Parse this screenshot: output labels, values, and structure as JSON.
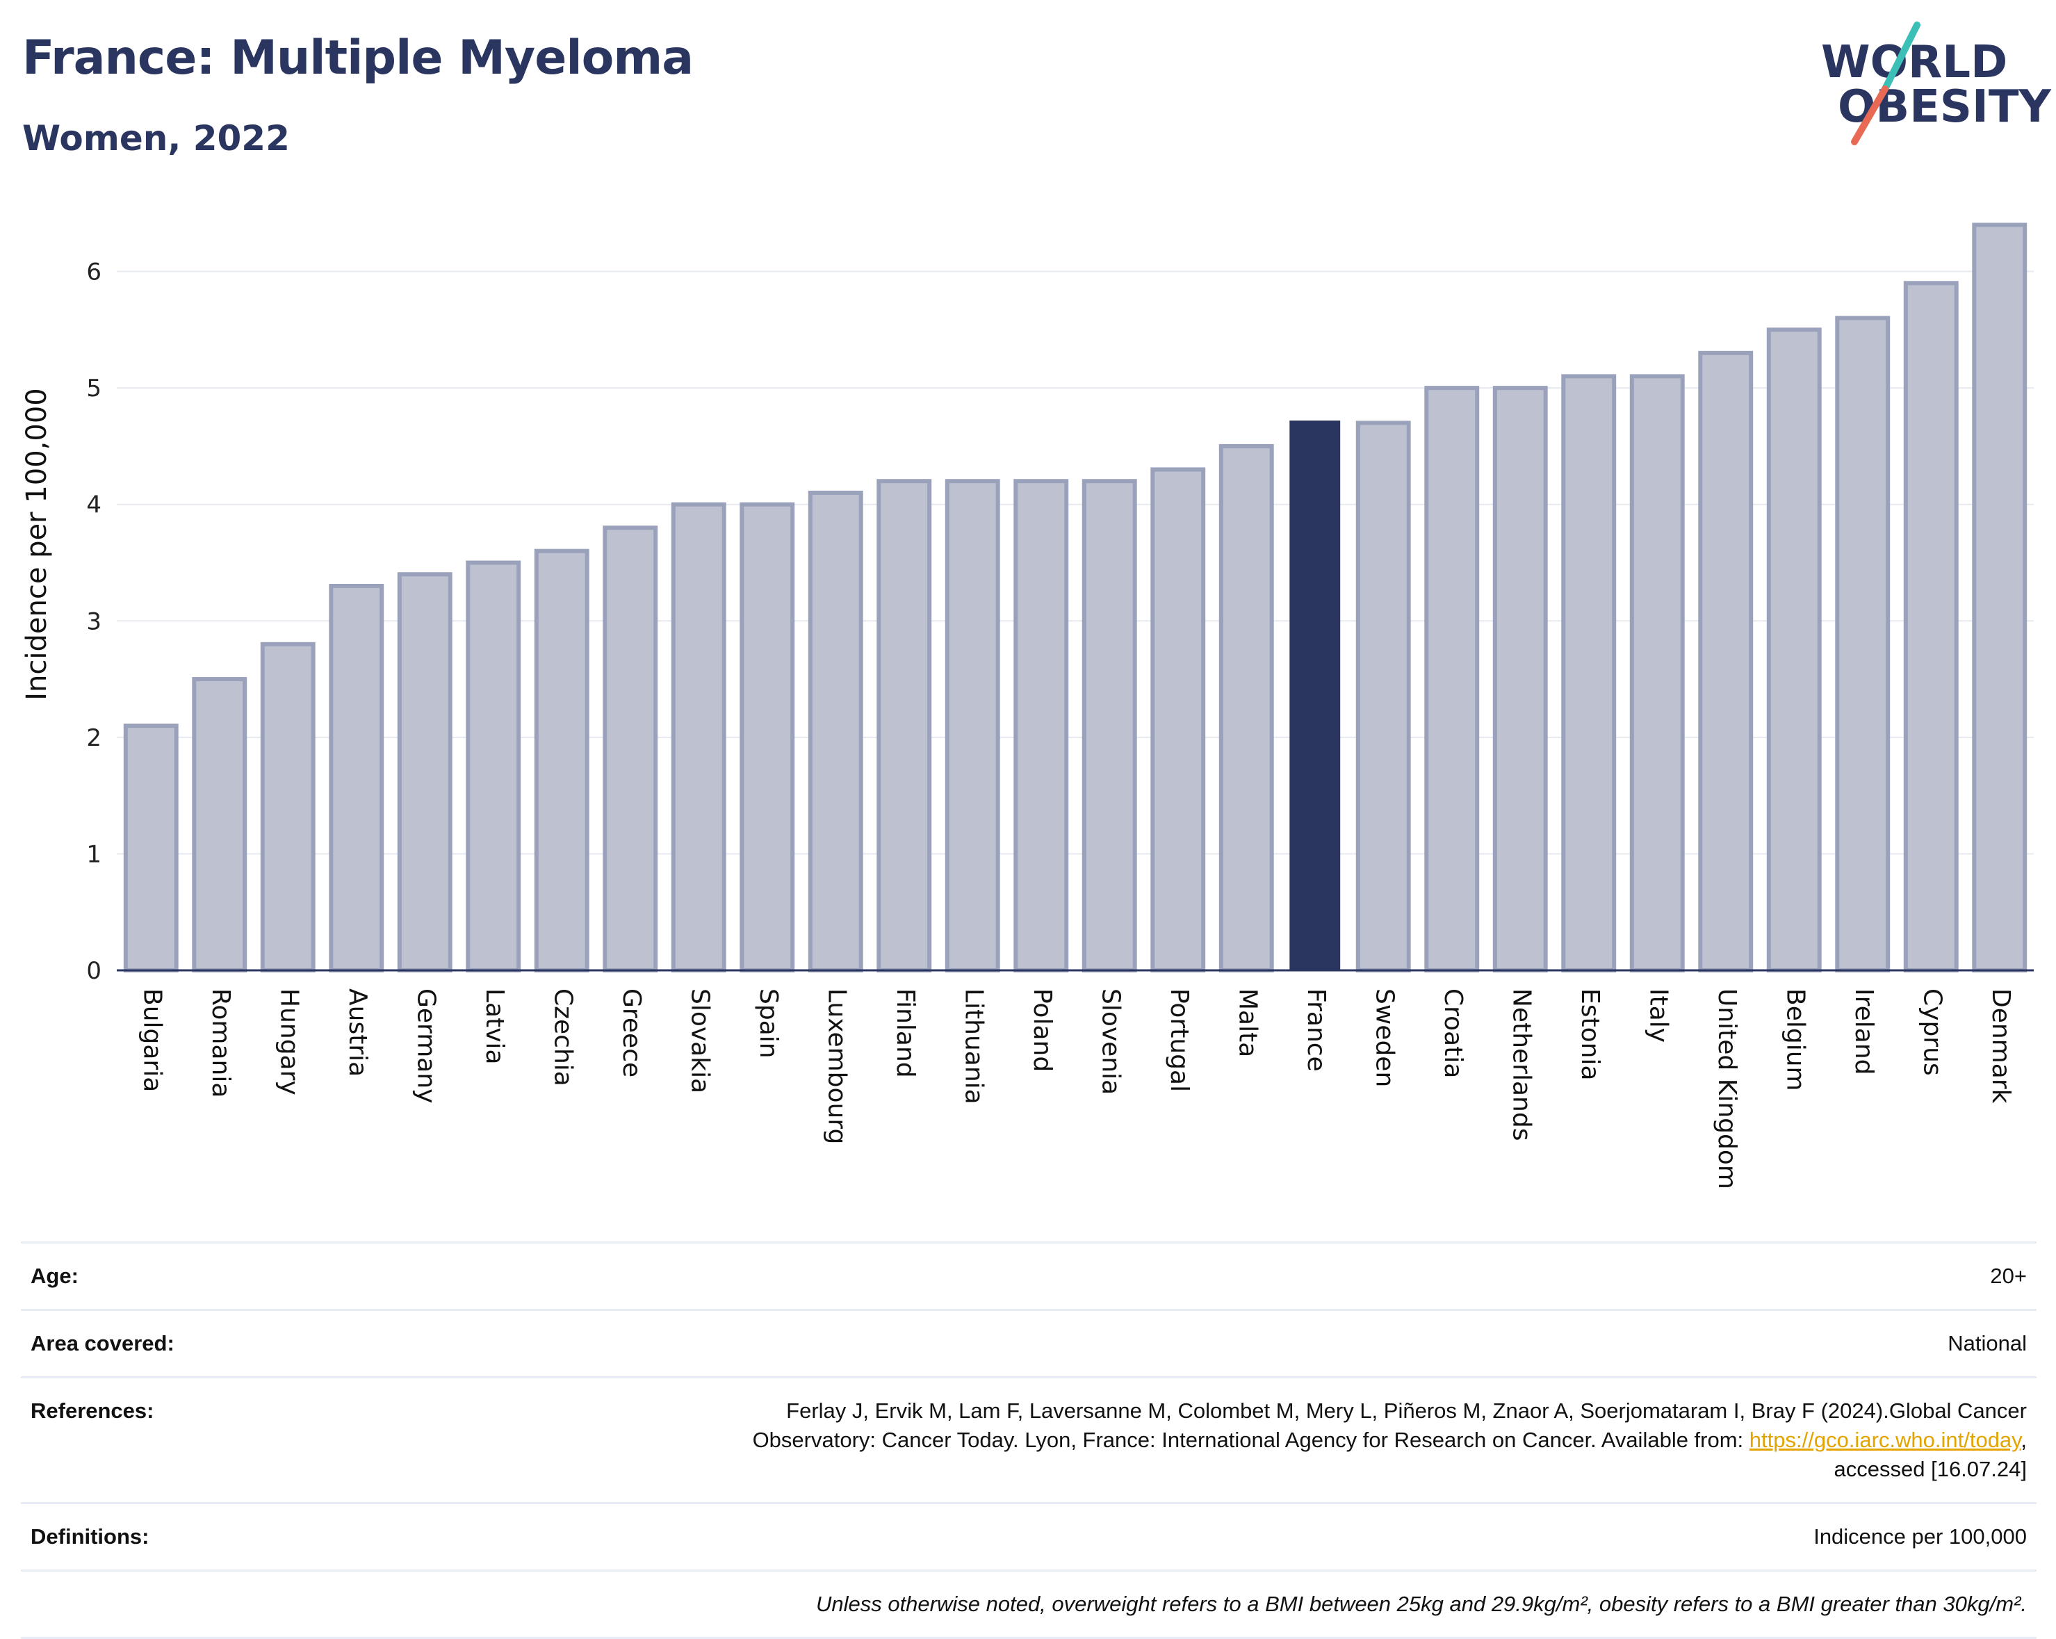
{
  "header": {
    "title": "France: Multiple Myeloma",
    "subtitle": "Women, 2022"
  },
  "logo": {
    "line1": "WORLD",
    "line2": "OBESITY",
    "slash_teal": "#3bbfb6",
    "slash_coral": "#e86a55"
  },
  "colors": {
    "bar_default": "#bec2d0",
    "bar_outline": "#9aa1bb",
    "bar_highlight": "#2a3660",
    "grid": "#e6e9f0",
    "axis": "#2a3660"
  },
  "chart_data": {
    "type": "bar",
    "ylabel": "Incidence per 100,000",
    "ylim": [
      0,
      6.6
    ],
    "yticks": [
      0,
      1,
      2,
      3,
      4,
      5,
      6
    ],
    "grid": true,
    "highlight": "France",
    "categories": [
      "Bulgaria",
      "Romania",
      "Hungary",
      "Austria",
      "Germany",
      "Latvia",
      "Czechia",
      "Greece",
      "Slovakia",
      "Spain",
      "Luxembourg",
      "Finland",
      "Lithuania",
      "Poland",
      "Slovenia",
      "Portugal",
      "Malta",
      "France",
      "Sweden",
      "Croatia",
      "Netherlands",
      "Estonia",
      "Italy",
      "United Kingdom",
      "Belgium",
      "Ireland",
      "Cyprus",
      "Denmark"
    ],
    "values": [
      2.1,
      2.5,
      2.8,
      3.3,
      3.4,
      3.5,
      3.6,
      3.8,
      4.0,
      4.0,
      4.1,
      4.2,
      4.2,
      4.2,
      4.2,
      4.3,
      4.5,
      4.72,
      4.7,
      5.0,
      5.0,
      5.1,
      5.1,
      5.3,
      5.5,
      5.6,
      5.9,
      6.4
    ]
  },
  "info": {
    "age_label": "Age:",
    "age_value": "20+",
    "area_label": "Area covered:",
    "area_value": "National",
    "references_label": "References:",
    "references_text_1": "Ferlay J, Ervik M, Lam F, Laversanne M, Colombet M, Mery L, Piñeros M, Znaor A, Soerjomataram I, Bray F (2024).Global Cancer",
    "references_text_2": "Observatory: Cancer Today. Lyon, France: International Agency for Research on Cancer. Available from: ",
    "references_link": "https://gco.iarc.who.int/today",
    "references_text_3": ",",
    "references_text_4": "accessed [16.07.24]",
    "definitions_label": "Definitions:",
    "definitions_value": "Indicence per 100,000",
    "note": "Unless otherwise noted, overweight refers to a BMI between 25kg and 29.9kg/m², obesity refers to a BMI greater than 30kg/m²."
  }
}
